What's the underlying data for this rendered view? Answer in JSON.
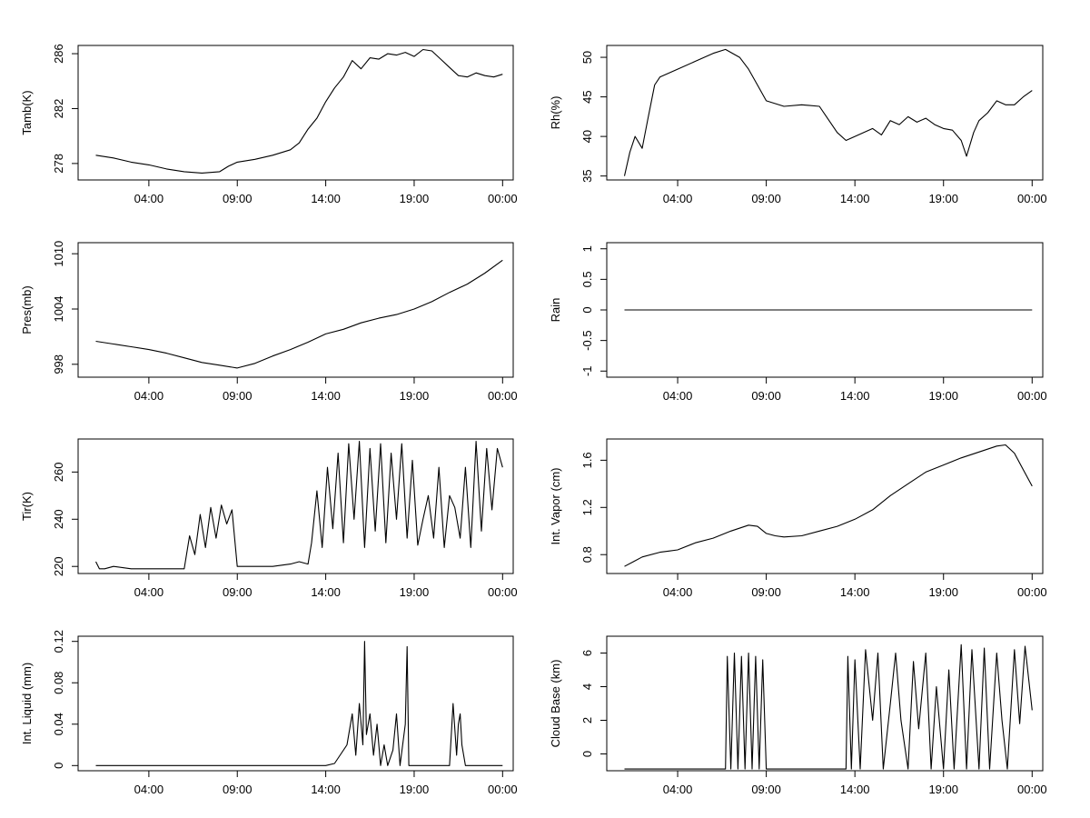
{
  "figure": {
    "x_tick_labels": [
      "04:00",
      "09:00",
      "14:00",
      "19:00",
      "00:00"
    ],
    "x_tick_hours": [
      4,
      9,
      14,
      19,
      24
    ]
  },
  "chart_data": [
    {
      "id": "tamb",
      "type": "line",
      "ylabel": "Tamb(K)",
      "ylim": [
        276.8,
        286.6
      ],
      "yticks": [
        278,
        282,
        286
      ],
      "xlim": [
        0.0,
        24.6
      ],
      "series": [
        {
          "x": [
            1.0,
            2.0,
            3.0,
            4.0,
            5.0,
            6.0,
            7.0,
            8.0,
            8.5,
            9.0,
            10.0,
            11.0,
            12.0,
            12.5,
            13.0,
            13.5,
            14.0,
            14.5,
            15.0,
            15.5,
            16.0,
            16.5,
            17.0,
            17.5,
            18.0,
            18.5,
            19.0,
            19.5,
            20.0,
            20.5,
            21.0,
            21.5,
            22.0,
            22.5,
            23.0,
            23.5,
            24.0
          ],
          "y": [
            278.6,
            278.4,
            278.1,
            277.9,
            277.6,
            277.4,
            277.3,
            277.4,
            277.8,
            278.1,
            278.3,
            278.6,
            279.0,
            279.5,
            280.5,
            281.3,
            282.5,
            283.5,
            284.3,
            285.5,
            284.9,
            285.7,
            285.6,
            286.0,
            285.9,
            286.1,
            285.8,
            286.3,
            286.2,
            285.6,
            285.0,
            284.4,
            284.3,
            284.6,
            284.4,
            284.3,
            284.5
          ]
        }
      ]
    },
    {
      "id": "rh",
      "type": "line",
      "ylabel": "Rh(%)",
      "ylim": [
        34.5,
        51.5
      ],
      "yticks": [
        35,
        40,
        45,
        50
      ],
      "xlim": [
        0.0,
        24.6
      ],
      "series": [
        {
          "x": [
            1.0,
            1.3,
            1.6,
            2.0,
            2.3,
            2.7,
            3.0,
            4.0,
            5.0,
            6.0,
            6.7,
            7.5,
            8.0,
            8.5,
            9.0,
            10.0,
            11.0,
            12.0,
            13.0,
            13.5,
            14.0,
            15.0,
            15.5,
            16.0,
            16.5,
            17.0,
            17.5,
            18.0,
            18.5,
            19.0,
            19.5,
            20.0,
            20.3,
            20.7,
            21.0,
            21.5,
            22.0,
            22.5,
            23.0,
            23.5,
            24.0
          ],
          "y": [
            35.0,
            38.0,
            40.0,
            38.5,
            42.0,
            46.5,
            47.5,
            48.5,
            49.5,
            50.5,
            51.0,
            50.0,
            48.5,
            46.5,
            44.5,
            43.8,
            44.0,
            43.8,
            40.5,
            39.5,
            40.0,
            41.0,
            40.2,
            42.0,
            41.5,
            42.5,
            41.8,
            42.3,
            41.5,
            41.0,
            40.8,
            39.5,
            37.5,
            40.5,
            42.0,
            43.0,
            44.5,
            44.0,
            44.0,
            45.0,
            45.8
          ]
        }
      ]
    },
    {
      "id": "pres",
      "type": "line",
      "ylabel": "Pres(mb)",
      "ylim": [
        996.6,
        1011.2
      ],
      "yticks": [
        998,
        1004,
        1010
      ],
      "xlim": [
        0.0,
        24.6
      ],
      "series": [
        {
          "x": [
            1.0,
            2.0,
            3.0,
            4.0,
            5.0,
            6.0,
            7.0,
            8.0,
            9.0,
            10.0,
            11.0,
            12.0,
            13.0,
            14.0,
            15.0,
            16.0,
            17.0,
            18.0,
            19.0,
            20.0,
            21.0,
            22.0,
            23.0,
            24.0
          ],
          "y": [
            1000.5,
            1000.2,
            999.9,
            999.6,
            999.2,
            998.7,
            998.2,
            997.9,
            997.6,
            998.1,
            998.9,
            999.6,
            1000.4,
            1001.3,
            1001.8,
            1002.5,
            1003.0,
            1003.4,
            1004.0,
            1004.8,
            1005.8,
            1006.7,
            1007.9,
            1009.3
          ]
        }
      ]
    },
    {
      "id": "rain",
      "type": "line",
      "ylabel": "Rain",
      "ylim": [
        -1.1,
        1.1
      ],
      "yticks": [
        -1.0,
        -0.5,
        0.0,
        0.5,
        1.0
      ],
      "xlim": [
        0.0,
        24.6
      ],
      "series": [
        {
          "x": [
            1.0,
            24.0
          ],
          "y": [
            0.0,
            0.0
          ]
        }
      ]
    },
    {
      "id": "tir",
      "type": "line",
      "ylabel": "Tir(K)",
      "ylim": [
        217,
        274
      ],
      "yticks": [
        220,
        240,
        260
      ],
      "xlim": [
        0.0,
        24.6
      ],
      "series": [
        {
          "x": [
            1.0,
            1.2,
            1.5,
            2.0,
            3.0,
            4.0,
            5.0,
            6.0,
            6.3,
            6.6,
            6.9,
            7.2,
            7.5,
            7.8,
            8.1,
            8.4,
            8.7,
            9.0,
            10.0,
            11.0,
            12.0,
            12.5,
            13.0,
            13.2,
            13.5,
            13.8,
            14.1,
            14.4,
            14.7,
            15.0,
            15.3,
            15.6,
            15.9,
            16.2,
            16.5,
            16.8,
            17.1,
            17.4,
            17.7,
            18.0,
            18.3,
            18.6,
            18.9,
            19.2,
            19.5,
            19.8,
            20.1,
            20.4,
            20.7,
            21.0,
            21.3,
            21.6,
            21.9,
            22.2,
            22.5,
            22.8,
            23.1,
            23.4,
            23.7,
            24.0
          ],
          "y": [
            222,
            219,
            219,
            220,
            219,
            219,
            219,
            219,
            233,
            225,
            242,
            228,
            245,
            232,
            246,
            238,
            244,
            220,
            220,
            220,
            221,
            222,
            221,
            230,
            252,
            228,
            262,
            236,
            268,
            230,
            272,
            240,
            273,
            228,
            270,
            235,
            272,
            230,
            268,
            240,
            272,
            232,
            265,
            229,
            240,
            250,
            232,
            262,
            228,
            250,
            245,
            232,
            262,
            228,
            273,
            235,
            270,
            244,
            270,
            262
          ]
        }
      ]
    },
    {
      "id": "vapor",
      "type": "line",
      "ylabel": "Int. Vapor (cm)",
      "ylim": [
        0.64,
        1.78
      ],
      "yticks": [
        0.8,
        1.2,
        1.6
      ],
      "xlim": [
        0.0,
        24.6
      ],
      "series": [
        {
          "x": [
            1.0,
            1.5,
            2.0,
            3.0,
            3.5,
            4.0,
            5.0,
            6.0,
            7.0,
            8.0,
            8.5,
            9.0,
            9.5,
            10.0,
            11.0,
            12.0,
            13.0,
            14.0,
            15.0,
            16.0,
            17.0,
            18.0,
            19.0,
            20.0,
            21.0,
            22.0,
            22.5,
            23.0,
            23.5,
            24.0
          ],
          "y": [
            0.7,
            0.74,
            0.78,
            0.82,
            0.83,
            0.84,
            0.9,
            0.94,
            1.0,
            1.05,
            1.04,
            0.98,
            0.96,
            0.95,
            0.96,
            1.0,
            1.04,
            1.1,
            1.18,
            1.3,
            1.4,
            1.5,
            1.56,
            1.62,
            1.67,
            1.72,
            1.73,
            1.66,
            1.52,
            1.38
          ]
        }
      ]
    },
    {
      "id": "liquid",
      "type": "line",
      "ylabel": "Int. Liquid (mm)",
      "ylim": [
        -0.005,
        0.125
      ],
      "yticks": [
        0.0,
        0.04,
        0.08,
        0.12
      ],
      "xlim": [
        0.0,
        24.6
      ],
      "series": [
        {
          "x": [
            1.0,
            14.0,
            14.5,
            15.2,
            15.5,
            15.7,
            15.9,
            16.1,
            16.2,
            16.3,
            16.5,
            16.7,
            16.9,
            17.1,
            17.3,
            17.5,
            17.8,
            18.0,
            18.2,
            18.5,
            18.6,
            18.7,
            19.0,
            21.0,
            21.2,
            21.4,
            21.5,
            21.6,
            21.7,
            21.9,
            22.0,
            24.0
          ],
          "y": [
            0,
            0,
            0.002,
            0.02,
            0.05,
            0.01,
            0.06,
            0.02,
            0.12,
            0.03,
            0.05,
            0.01,
            0.04,
            0.0,
            0.02,
            0.0,
            0.015,
            0.05,
            0.0,
            0.04,
            0.115,
            0.0,
            0,
            0,
            0.06,
            0.01,
            0.04,
            0.05,
            0.02,
            0.0,
            0.0,
            0
          ]
        }
      ]
    },
    {
      "id": "cloudbase",
      "type": "line",
      "ylabel": "Cloud Base (km)",
      "ylim": [
        -1.0,
        7.0
      ],
      "yticks": [
        0,
        2,
        4,
        6
      ],
      "xlim": [
        0.0,
        24.6
      ],
      "series": [
        {
          "x": [
            1.0,
            6.7,
            6.8,
            7.0,
            7.2,
            7.4,
            7.6,
            7.8,
            8.0,
            8.2,
            8.4,
            8.6,
            8.8,
            9.0,
            13.5,
            13.6,
            13.8,
            14.0,
            14.3,
            14.6,
            15.0,
            15.3,
            15.6,
            16.0,
            16.3,
            16.6,
            17.0,
            17.3,
            17.6,
            18.0,
            18.3,
            18.6,
            19.0,
            19.3,
            19.6,
            20.0,
            20.3,
            20.6,
            21.0,
            21.3,
            21.6,
            22.0,
            22.3,
            22.6,
            23.0,
            23.3,
            23.6,
            24.0
          ],
          "y": [
            -0.9,
            -0.9,
            5.8,
            -0.9,
            6.0,
            -0.9,
            5.8,
            -0.9,
            6.0,
            -0.9,
            5.8,
            -0.9,
            5.6,
            -0.9,
            -0.9,
            5.8,
            -0.9,
            5.6,
            -0.9,
            6.2,
            2.0,
            6.0,
            -0.9,
            3.0,
            6.0,
            2.0,
            -0.9,
            5.5,
            1.5,
            6.0,
            -0.9,
            4.0,
            -0.9,
            5.0,
            -0.9,
            6.5,
            -0.9,
            6.2,
            -0.9,
            6.3,
            -0.9,
            6.0,
            2.0,
            -0.9,
            6.2,
            1.8,
            6.4,
            2.6
          ]
        }
      ]
    }
  ]
}
